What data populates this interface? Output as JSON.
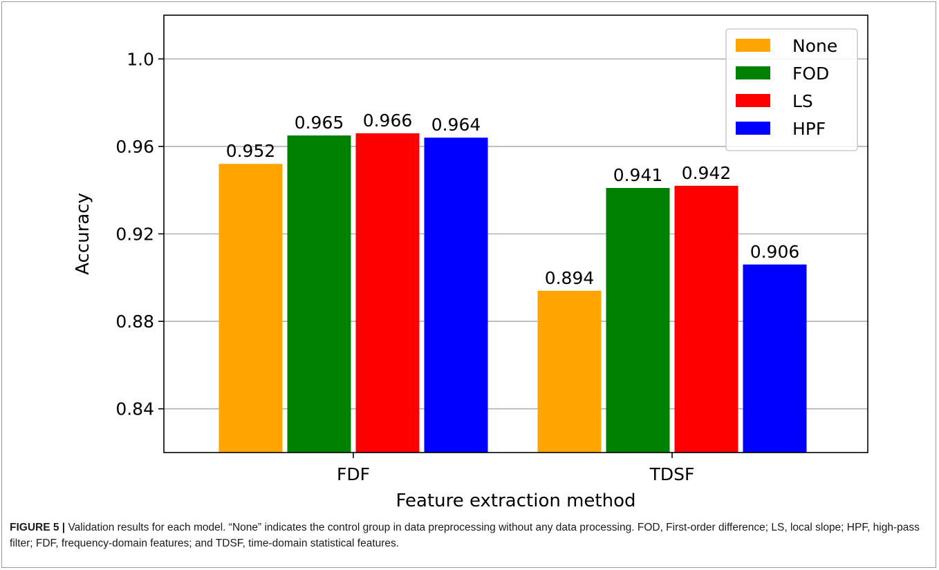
{
  "chart_data": {
    "type": "bar",
    "categories": [
      "FDF",
      "TDSF"
    ],
    "series": [
      {
        "name": "None",
        "color": "#FFA500",
        "values": [
          0.952,
          0.894
        ]
      },
      {
        "name": "FOD",
        "color": "#008000",
        "values": [
          0.965,
          0.941
        ]
      },
      {
        "name": "LS",
        "color": "#FF0000",
        "values": [
          0.966,
          0.942
        ]
      },
      {
        "name": "HPF",
        "color": "#0000FF",
        "values": [
          0.964,
          0.906
        ]
      }
    ],
    "data_labels": [
      [
        "0.952",
        "0.894"
      ],
      [
        "0.965",
        "0.941"
      ],
      [
        "0.966",
        "0.942"
      ],
      [
        "0.964",
        "0.906"
      ]
    ],
    "xlabel": "Feature extraction method",
    "ylabel": "Accuracy",
    "ylim": [
      0.82,
      1.02
    ],
    "yticks": [
      0.84,
      0.88,
      0.92,
      0.96,
      1.0
    ],
    "ytick_labels": [
      "0.84",
      "0.88",
      "0.92",
      "0.96",
      "1.0"
    ],
    "grid": "horizontal",
    "legend_position": "top-right"
  },
  "caption": {
    "label": "FIGURE 5 |",
    "text": "Validation results for each model. “None” indicates the control group in data preprocessing without any data processing. FOD, First-order difference; LS, local slope; HPF, high-pass filter; FDF, frequency-domain features; and TDSF, time-domain statistical features."
  }
}
